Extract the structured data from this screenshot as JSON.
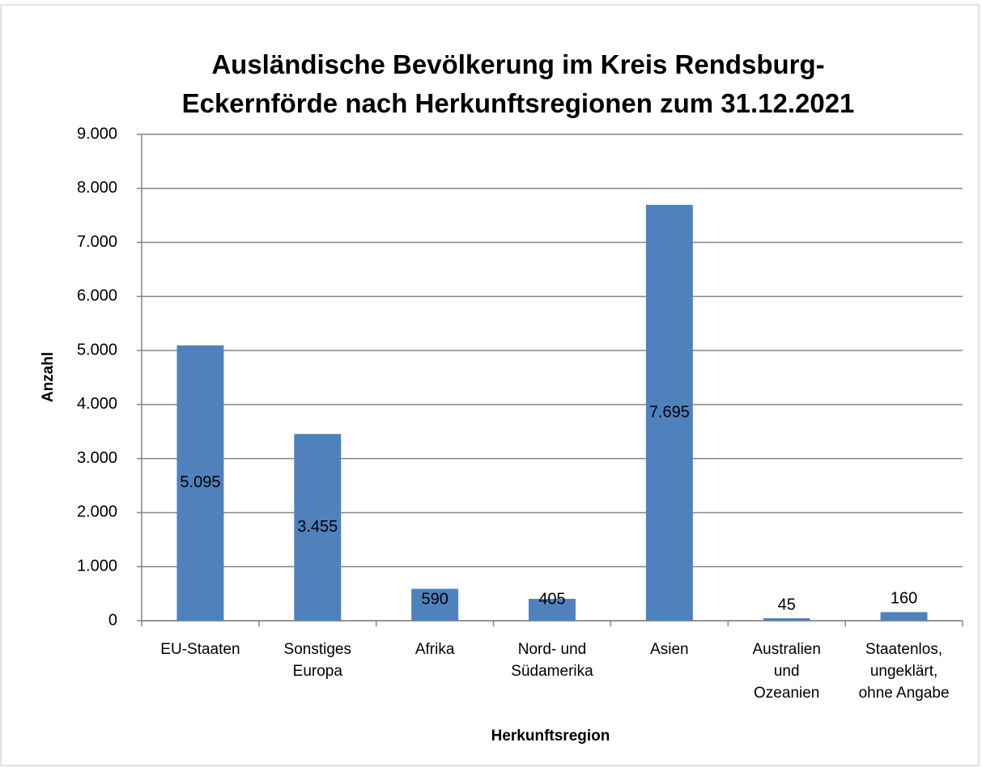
{
  "chart_data": {
    "type": "bar",
    "title": "Ausländische Bevölkerung im Kreis Rendsburg-\nEckernförde nach Herkunftsregionen zum 31.12.2021",
    "x_label": "Herkunftsregion",
    "y_label": "Anzahl",
    "categories": [
      "EU-Staaten",
      "Sonstiges\nEuropa",
      "Afrika",
      "Nord- und\nSüdamerika",
      "Asien",
      "Australien\nund\nOzeanien",
      "Staatenlos,\nungeklärt,\nohne Angabe"
    ],
    "values": [
      5095,
      3455,
      590,
      405,
      7695,
      45,
      160
    ],
    "value_labels": [
      "5.095",
      "3.455",
      "590",
      "405",
      "7.695",
      "45",
      "160"
    ],
    "color": "#4f81bd",
    "ylim": [
      0,
      9000
    ],
    "yticks": [
      0,
      {
        "value": 1000,
        "label": "1.000"
      },
      {
        "value": 2000,
        "label": "2.000"
      },
      {
        "value": 3000,
        "label": "3.000"
      },
      {
        "value": 4000,
        "label": "4.000"
      },
      {
        "value": 5000,
        "label": "5.000"
      },
      {
        "value": 6000,
        "label": "6.000"
      },
      {
        "value": 7000,
        "label": "7.000"
      },
      {
        "value": 8000,
        "label": "8.000"
      },
      {
        "value": 9000,
        "label": "9.000"
      }
    ],
    "grid": true
  }
}
